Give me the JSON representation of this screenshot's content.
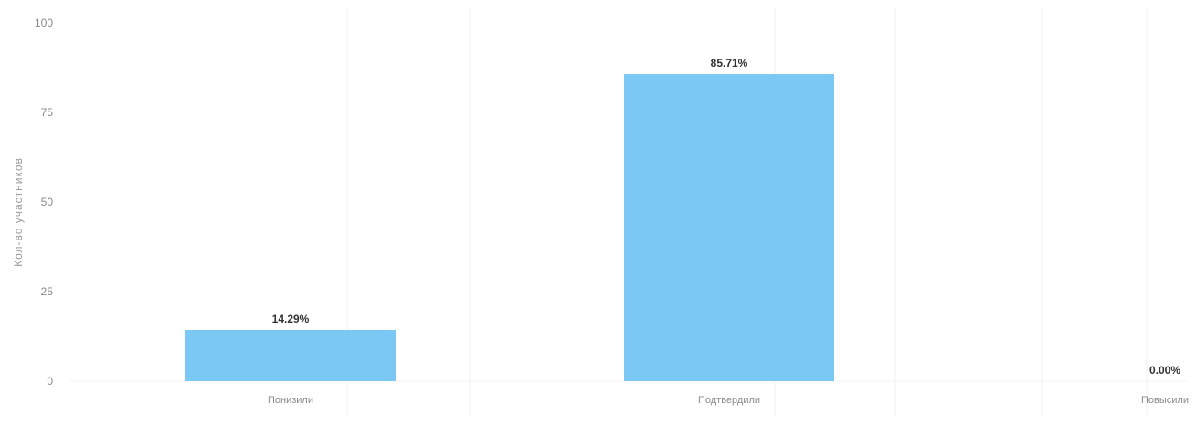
{
  "chart_data": {
    "type": "bar",
    "title": "",
    "xlabel": "",
    "ylabel": "Кол-во участников",
    "ylim": [
      0,
      100
    ],
    "yticks": [
      0,
      25,
      50,
      75,
      100
    ],
    "categories": [
      "Понизили",
      "Подтвердили",
      "Повысили"
    ],
    "values": [
      14.29,
      85.71,
      0.0
    ],
    "data_labels": [
      "14.29%",
      "85.71%",
      "0.00%"
    ],
    "bar_color": "#7cc8f4",
    "grid": "vertical-lines",
    "legend": "none"
  }
}
